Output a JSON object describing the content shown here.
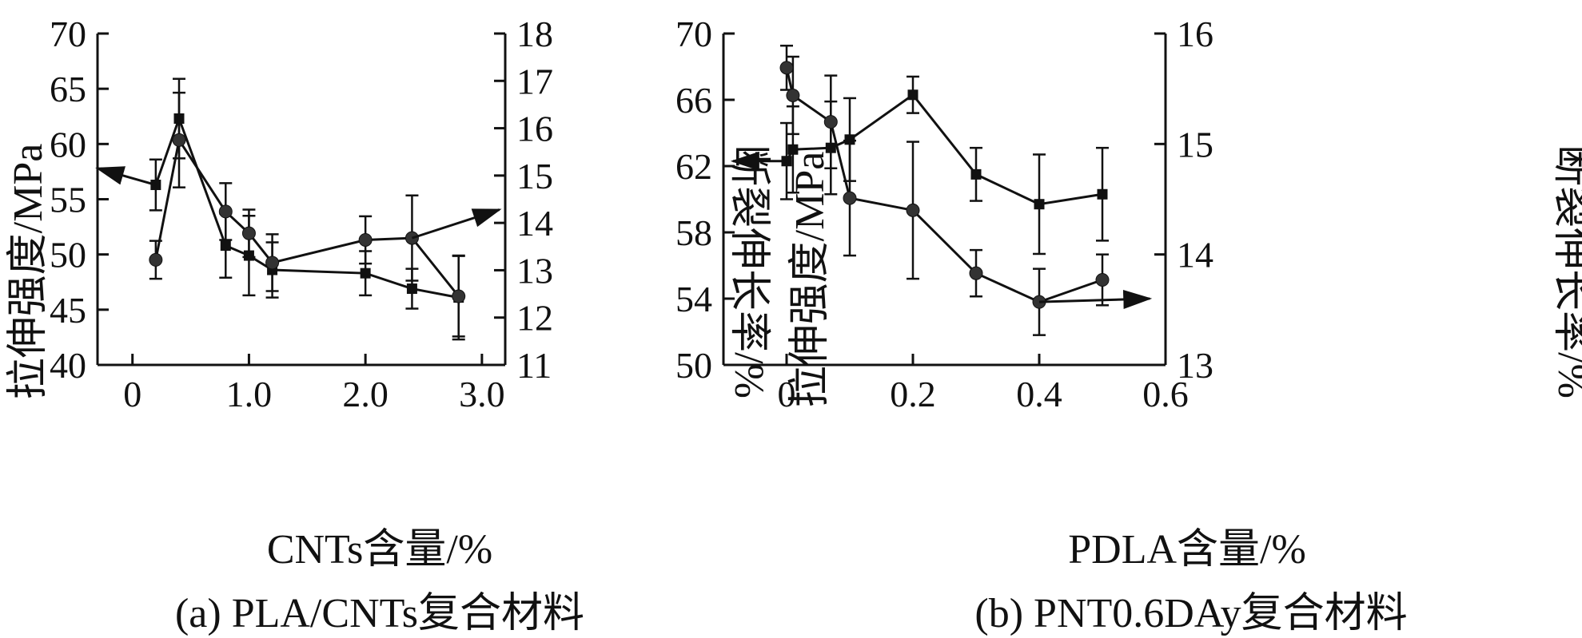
{
  "chart_data": [
    {
      "type": "line",
      "caption": "(a) PLA/CNTs复合材料",
      "xlabel": "CNTs含量/%",
      "ylabel": "拉伸强度/MPa",
      "y2label": "断裂伸长率/%",
      "xlim": [
        -0.3,
        3.2
      ],
      "ylim": [
        40,
        70
      ],
      "y2lim": [
        11,
        18
      ],
      "xticks": [
        0,
        1.0,
        2.0,
        3.0
      ],
      "xtick_labels": [
        "0",
        "1.0",
        "2.0",
        "3.0"
      ],
      "yticks": [
        40,
        45,
        50,
        55,
        60,
        65,
        70
      ],
      "ytick_labels": [
        "40",
        "45",
        "50",
        "55",
        "60",
        "65",
        "70"
      ],
      "y2ticks": [
        11,
        12,
        13,
        14,
        15,
        16,
        17,
        18
      ],
      "y2tick_labels": [
        "11",
        "12",
        "13",
        "14",
        "15",
        "16",
        "17",
        "18"
      ],
      "grid": false,
      "series": [
        {
          "marker": "square",
          "axis": "left",
          "x": [
            0.2,
            0.4,
            0.8,
            1.0,
            1.2,
            2.0,
            2.4,
            2.8
          ],
          "values": [
            56.3,
            62.3,
            50.8,
            49.9,
            48.6,
            48.3,
            46.9,
            46.1
          ],
          "errors": [
            2.3,
            3.6,
            2.9,
            3.6,
            2.5,
            2.0,
            1.8,
            3.8
          ],
          "arrow": {
            "from": [
              0.2,
              56.3
            ],
            "to": [
              -0.3,
              57.8
            ]
          }
        },
        {
          "marker": "circle",
          "axis": "right",
          "x": [
            0.2,
            0.4,
            0.8,
            1.0,
            1.2,
            2.0,
            2.4,
            2.8
          ],
          "values": [
            13.22,
            15.75,
            14.24,
            13.78,
            13.16,
            13.64,
            13.68,
            12.45
          ],
          "errors": [
            0.4,
            1.0,
            0.6,
            0.5,
            0.6,
            0.5,
            0.9,
            0.85
          ],
          "arrow": {
            "from": [
              2.4,
              13.68
            ],
            "to": [
              3.15,
              14.28
            ]
          }
        }
      ]
    },
    {
      "type": "line",
      "caption": "(b) PNT0.6DAy复合材料",
      "xlabel": "PDLA含量/%",
      "ylabel": "拉伸强度/MPa",
      "y2label": "断裂伸长率/%",
      "xlim": [
        -0.1,
        0.6
      ],
      "ylim": [
        50,
        70
      ],
      "y2lim": [
        13,
        16
      ],
      "xticks": [
        0,
        0.2,
        0.4,
        0.6
      ],
      "xtick_labels": [
        "0",
        "0.2",
        "0.4",
        "0.6"
      ],
      "yticks": [
        50,
        54,
        58,
        62,
        66,
        70
      ],
      "ytick_labels": [
        "50",
        "54",
        "58",
        "62",
        "66",
        "70"
      ],
      "y2ticks": [
        13,
        14,
        15,
        16
      ],
      "y2tick_labels": [
        "13",
        "14",
        "15",
        "16"
      ],
      "grid": false,
      "series": [
        {
          "marker": "square",
          "axis": "left",
          "x": [
            0.0,
            0.01,
            0.07,
            0.1,
            0.2,
            0.3,
            0.4,
            0.5
          ],
          "values": [
            62.3,
            63.0,
            63.1,
            63.6,
            66.3,
            61.5,
            59.7,
            60.3
          ],
          "errors": [
            2.3,
            2.6,
            2.8,
            2.5,
            1.1,
            1.6,
            3.0,
            2.8
          ],
          "arrow": {
            "from": [
              0.0,
              62.3
            ],
            "to": [
              -0.085,
              62.3
            ]
          }
        },
        {
          "marker": "circle",
          "axis": "right",
          "x": [
            0.0,
            0.01,
            0.07,
            0.1,
            0.2,
            0.3,
            0.4,
            0.5
          ],
          "values": [
            15.69,
            15.44,
            15.2,
            14.51,
            14.4,
            13.83,
            13.57,
            13.77
          ],
          "errors": [
            0.2,
            0.35,
            0.42,
            0.52,
            0.62,
            0.21,
            0.3,
            0.23
          ],
          "arrow": {
            "from": [
              0.4,
              13.57
            ],
            "to": [
              0.575,
              13.6
            ]
          }
        }
      ]
    }
  ]
}
